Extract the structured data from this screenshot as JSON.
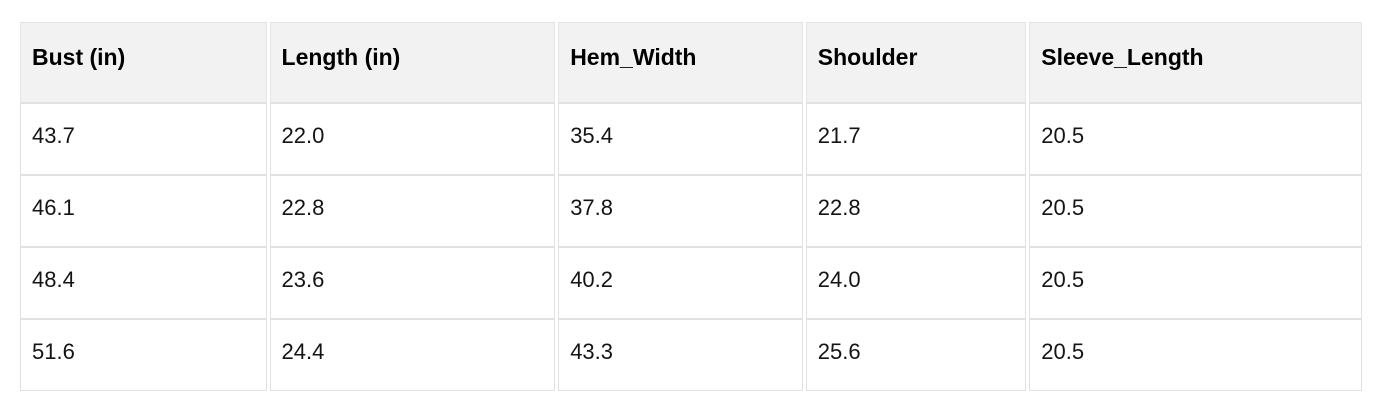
{
  "table": {
    "columns": [
      "Bust (in)",
      "Length (in)",
      "Hem_Width",
      "Shoulder",
      "Sleeve_Length"
    ],
    "rows": [
      [
        "43.7",
        "22.0",
        "35.4",
        "21.7",
        "20.5"
      ],
      [
        "46.1",
        "22.8",
        "37.8",
        "22.8",
        "20.5"
      ],
      [
        "48.4",
        "23.6",
        "40.2",
        "24.0",
        "20.5"
      ],
      [
        "51.6",
        "24.4",
        "43.3",
        "25.6",
        "20.5"
      ]
    ],
    "colors": {
      "page_bg": "#ffffff",
      "header_bg": "#f2f2f2",
      "cell_bg": "#ffffff",
      "border": "#e1e1e1",
      "text": "#141414"
    }
  },
  "chart_data": {
    "type": "table",
    "title": "",
    "columns": [
      "Bust (in)",
      "Length (in)",
      "Hem_Width",
      "Shoulder",
      "Sleeve_Length"
    ],
    "rows": [
      [
        43.7,
        22.0,
        35.4,
        21.7,
        20.5
      ],
      [
        46.1,
        22.8,
        37.8,
        22.8,
        20.5
      ],
      [
        48.4,
        23.6,
        40.2,
        24.0,
        20.5
      ],
      [
        51.6,
        24.4,
        43.3,
        25.6,
        20.5
      ]
    ]
  }
}
